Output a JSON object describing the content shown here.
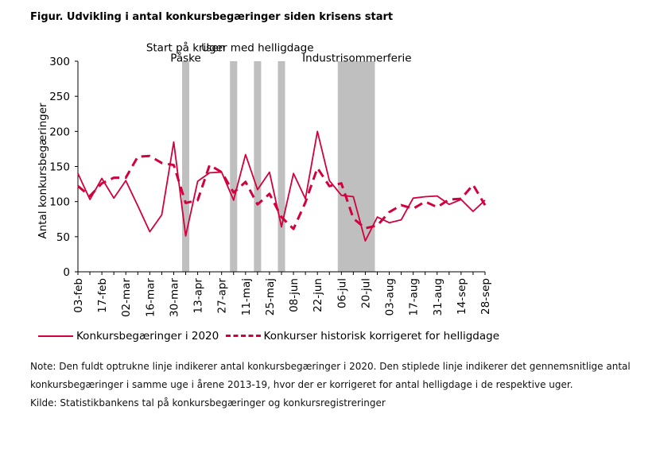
{
  "figure": {
    "title": "Figur. Udvikling i antal konkursbegæringer siden krisens start",
    "note_line1": "Note: Den fuldt optrukne linje indikerer antal konkursbegæringer i 2020. Den stiplede linje indikerer det gennemsnitlige antal",
    "note_line2": "konkursbegæringer i samme uge i årene 2013-19, hvor der er korrigeret for antal helligdage i de respektive uger.",
    "source": "Kilde: Statistikbankens tal på konkursbegæringer og konkursregistreringer"
  },
  "chart_data": {
    "type": "line",
    "ylabel": "Antal konkursbegæringer",
    "xlabel": "",
    "ylim": [
      0,
      300
    ],
    "yticks": [
      0,
      50,
      100,
      150,
      200,
      250,
      300
    ],
    "x_start_week": 6,
    "x_end_week": 40,
    "xticks": [
      {
        "label": "03-feb",
        "week": 6
      },
      {
        "label": "17-feb",
        "week": 8
      },
      {
        "label": "02-mar",
        "week": 10
      },
      {
        "label": "16-mar",
        "week": 12
      },
      {
        "label": "30-mar",
        "week": 14
      },
      {
        "label": "13-apr",
        "week": 16
      },
      {
        "label": "27-apr",
        "week": 18
      },
      {
        "label": "11-maj",
        "week": 20
      },
      {
        "label": "25-maj",
        "week": 22
      },
      {
        "label": "08-jun",
        "week": 24
      },
      {
        "label": "22-jun",
        "week": 26
      },
      {
        "label": "06-jul",
        "week": 28
      },
      {
        "label": "20-jul",
        "week": 30
      },
      {
        "label": "03-aug",
        "week": 32
      },
      {
        "label": "17-aug",
        "week": 34
      },
      {
        "label": "31-aug",
        "week": 36
      },
      {
        "label": "14-sep",
        "week": 38
      },
      {
        "label": "28-sep",
        "week": 40
      }
    ],
    "shaded_periods": [
      {
        "from_week": 14.7,
        "to_week": 15.3
      },
      {
        "from_week": 18.7,
        "to_week": 19.3
      },
      {
        "from_week": 20.7,
        "to_week": 21.3
      },
      {
        "from_week": 22.7,
        "to_week": 23.3
      },
      {
        "from_week": 27.7,
        "to_week": 30.8
      }
    ],
    "annotations": [
      {
        "text": "Start på krisen",
        "week": 15.0,
        "value": 320
      },
      {
        "text": "Påske",
        "week": 15.0,
        "value": 305
      },
      {
        "text": "Uger med helligdage",
        "week": 21.0,
        "value": 320
      },
      {
        "text": "Industrisommerferie",
        "week": 29.3,
        "value": 305
      }
    ],
    "series": [
      {
        "name": "Konkursbegæringer i 2020",
        "style": "solid",
        "color": "#d2003c",
        "x": [
          6,
          7,
          8,
          9,
          10,
          11,
          12,
          13,
          14,
          15,
          16,
          17,
          18,
          19,
          20,
          21,
          22,
          23,
          24,
          25,
          26,
          27,
          28,
          29,
          30,
          31,
          32,
          33,
          34,
          35,
          36,
          37,
          38,
          39,
          40
        ],
        "values": [
          140,
          103,
          133,
          105,
          130,
          94,
          57,
          81,
          185,
          51,
          129,
          141,
          142,
          102,
          167,
          117,
          142,
          64,
          140,
          104,
          200,
          130,
          109,
          107,
          44,
          78,
          70,
          74,
          105,
          107,
          108,
          96,
          103,
          86,
          102
        ]
      },
      {
        "name": "Konkurser historisk korrigeret for helligdage",
        "style": "dashed",
        "color": "#d2003c",
        "x": [
          6,
          7,
          8,
          9,
          10,
          11,
          12,
          13,
          14,
          15,
          16,
          17,
          18,
          19,
          20,
          21,
          22,
          23,
          24,
          25,
          26,
          27,
          28,
          29,
          30,
          31,
          32,
          33,
          34,
          35,
          36,
          37,
          38,
          39,
          40
        ],
        "values": [
          122,
          108,
          126,
          134,
          134,
          164,
          165,
          155,
          152,
          98,
          102,
          152,
          142,
          113,
          128,
          96,
          111,
          78,
          61,
          99,
          148,
          122,
          126,
          76,
          62,
          66,
          85,
          95,
          90,
          100,
          92,
          103,
          104,
          124,
          95
        ]
      }
    ],
    "legend_position": "bottom"
  }
}
